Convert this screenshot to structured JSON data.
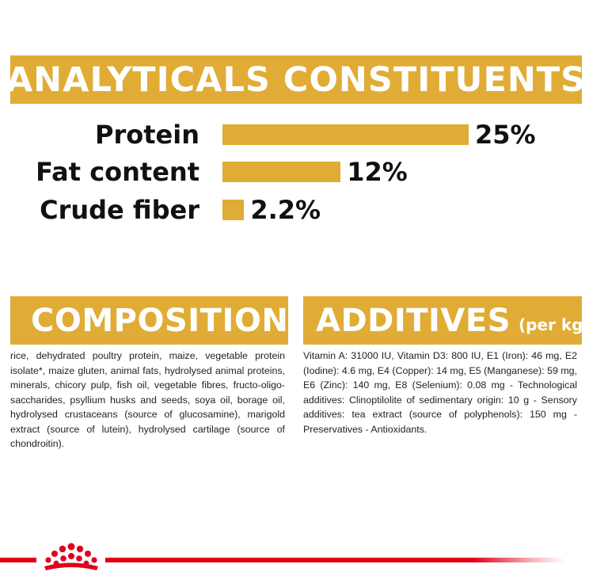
{
  "analytics": {
    "title": "ANALYTICALS CONSTITUENTS",
    "rows": [
      {
        "label": "Protein",
        "value_text": "25%",
        "value": 25
      },
      {
        "label": "Fat content",
        "value_text": "12%",
        "value": 12
      },
      {
        "label": "Crude fiber",
        "value_text": "2.2%",
        "value": 2.2
      }
    ]
  },
  "composition": {
    "title": "COMPOSITION",
    "text": "rice, dehydrated poultry protein, maize, vegetable protein isolate*, maize gluten, animal fats, hydrolysed animal proteins, minerals, chicory pulp, fish oil, vegetable fibres, fructo-oligo-saccharides, psyllium husks and seeds, soya oil, borage oil, hydrolysed crustaceans (source of glucosamine), marigold extract (source of lutein), hydrolysed cartilage (source of chondroitin)."
  },
  "additives": {
    "title": "ADDITIVES",
    "subtitle": "(per kg)",
    "text": "Vitamin A: 31000 IU, Vitamin D3: 800 IU, E1 (Iron): 46 mg, E2 (Iodine): 4.6 mg, E4 (Copper): 14 mg, E5 (Manganese): 59 mg, E6 (Zinc): 140 mg, E8 (Selenium): 0.08 mg - Technological additives: Clinoptilolite of sedimentary origin: 10 g - Sensory additives: tea extract (source of polyphenols): 150 mg - Preservatives - Antioxidants."
  },
  "colors": {
    "accent": "#e0ac35",
    "brand_red": "#e2001a"
  },
  "footer": {
    "logo_icon": "royal-canin-crown-icon"
  }
}
